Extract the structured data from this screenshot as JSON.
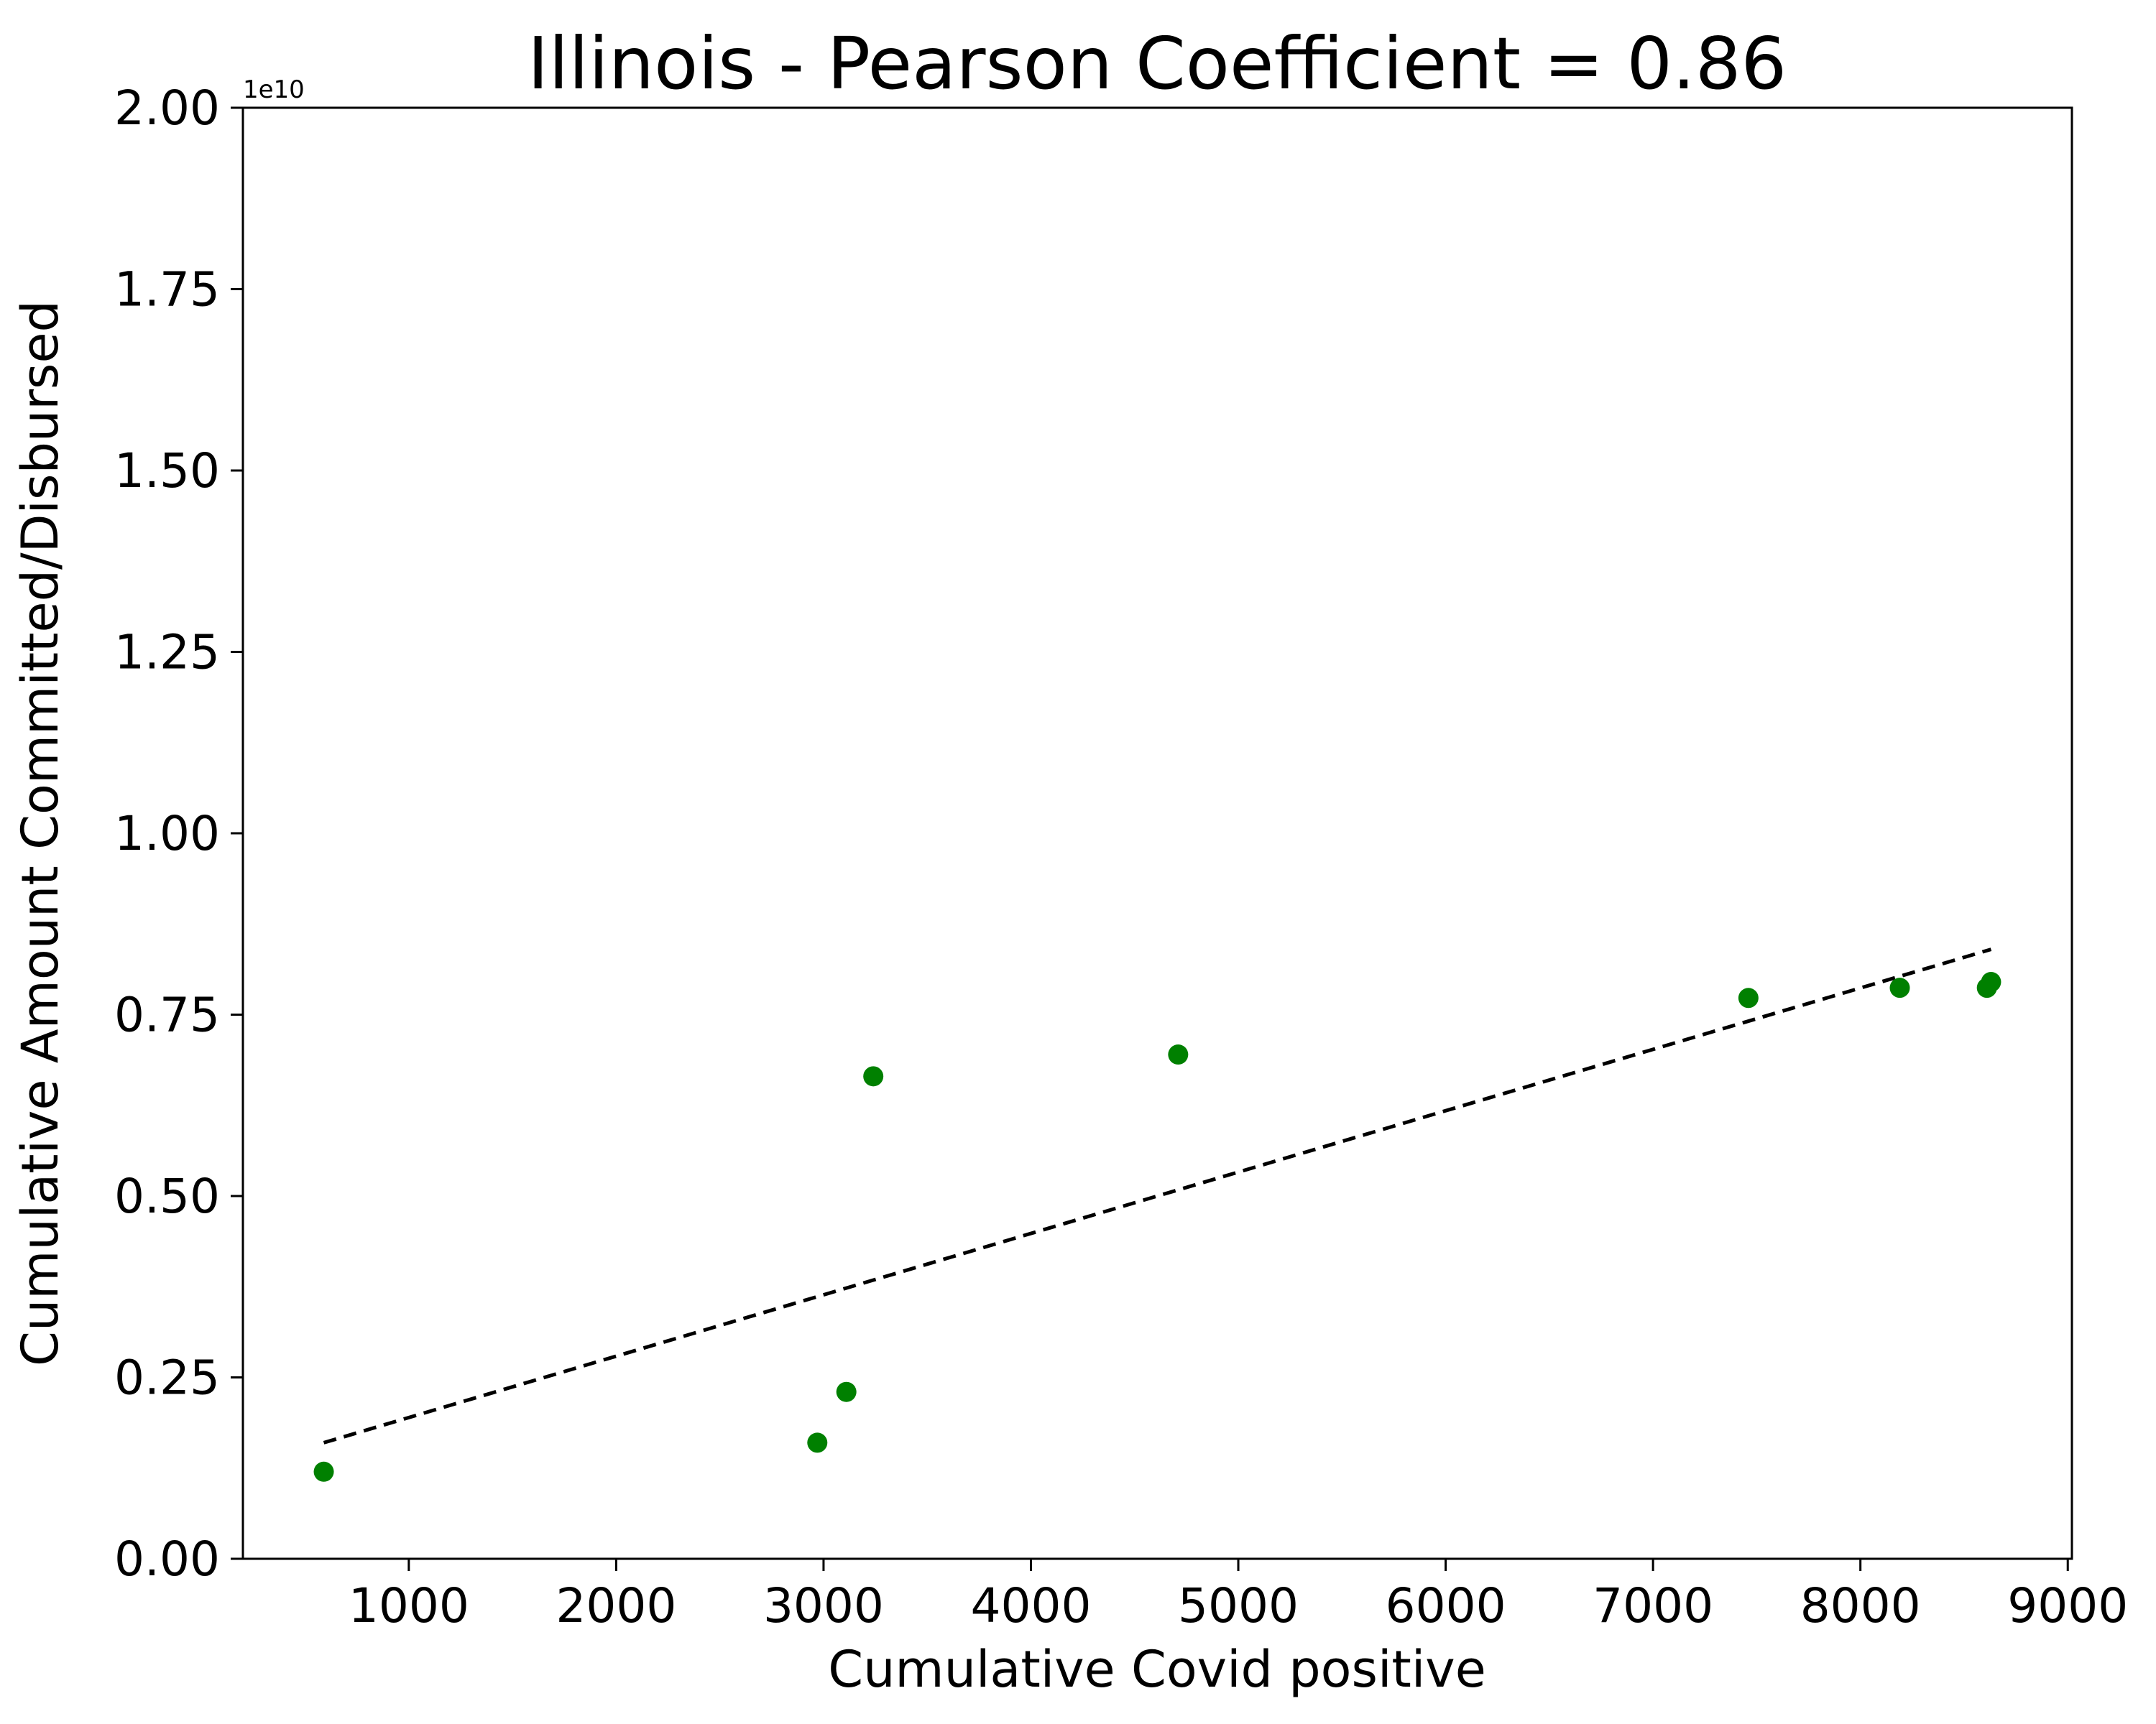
{
  "chart_data": {
    "type": "scatter",
    "title": "Illinois - Pearson Coefficient = 0.86",
    "xlabel": "Cumulative Covid positive",
    "ylabel": "Cumulative Amount Committed/Disbursed",
    "y_offset_label": "1e10",
    "xlim": [
      200,
      9020
    ],
    "ylim": [
      0,
      2.0
    ],
    "x_ticks": [
      1000,
      2000,
      3000,
      4000,
      5000,
      6000,
      7000,
      8000,
      9000
    ],
    "x_tick_labels": [
      "1000",
      "2000",
      "3000",
      "4000",
      "5000",
      "6000",
      "7000",
      "8000",
      "9000"
    ],
    "y_ticks": [
      0,
      0.25,
      0.5,
      0.75,
      1.0,
      1.25,
      1.5,
      1.75,
      2.0
    ],
    "y_tick_labels": [
      "0.00",
      "0.25",
      "0.50",
      "0.75",
      "1.00",
      "1.25",
      "1.50",
      "1.75",
      "2.00"
    ],
    "grid": false,
    "series": [
      {
        "color": "#008000",
        "points": [
          {
            "x": 590,
            "y": 0.12
          },
          {
            "x": 2970,
            "y": 0.16
          },
          {
            "x": 3110,
            "y": 0.23
          },
          {
            "x": 3240,
            "y": 0.665
          },
          {
            "x": 4710,
            "y": 0.695
          },
          {
            "x": 7460,
            "y": 0.773
          },
          {
            "x": 8190,
            "y": 0.787
          },
          {
            "x": 8610,
            "y": 0.787
          },
          {
            "x": 8630,
            "y": 0.795
          }
        ]
      }
    ],
    "trendline": {
      "style": "dashed",
      "color": "#000000",
      "points": [
        {
          "x": 590,
          "y": 0.16
        },
        {
          "x": 8630,
          "y": 0.84
        }
      ]
    }
  }
}
